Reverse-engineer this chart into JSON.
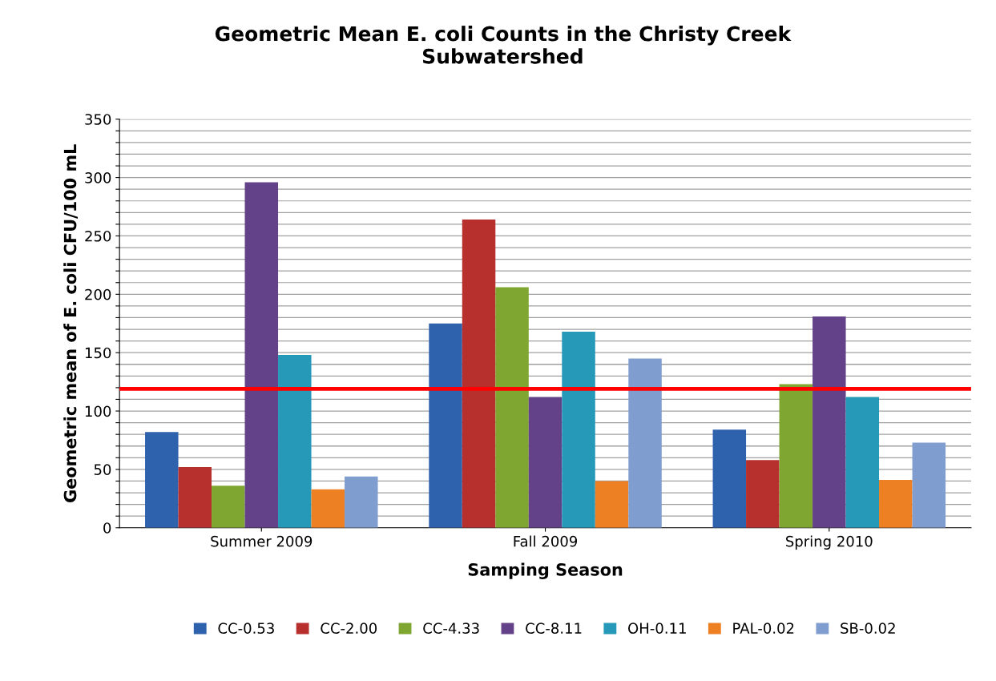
{
  "chart_data": {
    "type": "bar",
    "title": "Geometric Mean E. coli Counts in the Christy Creek\nSubwatershed",
    "xlabel": "Samping Season",
    "ylabel": "Geometric mean of E. coli CFU/100 mL",
    "categories": [
      "Summer 2009",
      "Fall 2009",
      "Spring 2010"
    ],
    "series": [
      {
        "name": "CC-0.53",
        "color": "#2e62ad",
        "values": [
          82,
          175,
          84
        ]
      },
      {
        "name": "CC-2.00",
        "color": "#b8302e",
        "values": [
          52,
          264,
          58
        ]
      },
      {
        "name": "CC-4.33",
        "color": "#7ea630",
        "values": [
          36,
          206,
          123
        ]
      },
      {
        "name": "CC-8.11",
        "color": "#644289",
        "values": [
          296,
          112,
          181
        ]
      },
      {
        "name": "OH-0.11",
        "color": "#2799b8",
        "values": [
          148,
          168,
          112
        ]
      },
      {
        "name": "PAL-0.02",
        "color": "#ee8024",
        "values": [
          33,
          40,
          41
        ]
      },
      {
        "name": "SB-0.02",
        "color": "#809dd0",
        "values": [
          44,
          145,
          73
        ]
      }
    ],
    "ref_lines": [
      {
        "axis": "y",
        "value": 119,
        "color": "#ff0000"
      }
    ],
    "ylim": [
      0,
      350
    ],
    "yticks": [
      0,
      {
        "value": 10,
        "label": null
      },
      {
        "value": 20,
        "label": null
      },
      {
        "value": 30,
        "label": null
      },
      {
        "value": 40,
        "label": null
      },
      50,
      {
        "value": 60,
        "label": null
      },
      {
        "value": 70,
        "label": null
      },
      {
        "value": 80,
        "label": null
      },
      {
        "value": 90,
        "label": null
      },
      100,
      {
        "value": 110,
        "label": null
      },
      {
        "value": 120,
        "label": null
      },
      {
        "value": 130,
        "label": null
      },
      {
        "value": 140,
        "label": null
      },
      150,
      {
        "value": 160,
        "label": null
      },
      {
        "value": 170,
        "label": null
      },
      {
        "value": 180,
        "label": null
      },
      {
        "value": 190,
        "label": null
      },
      200,
      {
        "value": 210,
        "label": null
      },
      {
        "value": 220,
        "label": null
      },
      {
        "value": 230,
        "label": null
      },
      {
        "value": 240,
        "label": null
      },
      250,
      {
        "value": 260,
        "label": null
      },
      {
        "value": 270,
        "label": null
      },
      {
        "value": 280,
        "label": null
      },
      {
        "value": 290,
        "label": null
      },
      300,
      {
        "value": 310,
        "label": null
      },
      {
        "value": 320,
        "label": null
      },
      {
        "value": 330,
        "label": null
      },
      {
        "value": 340,
        "label": null
      },
      350
    ],
    "grid": "y",
    "legend": "bottom"
  }
}
